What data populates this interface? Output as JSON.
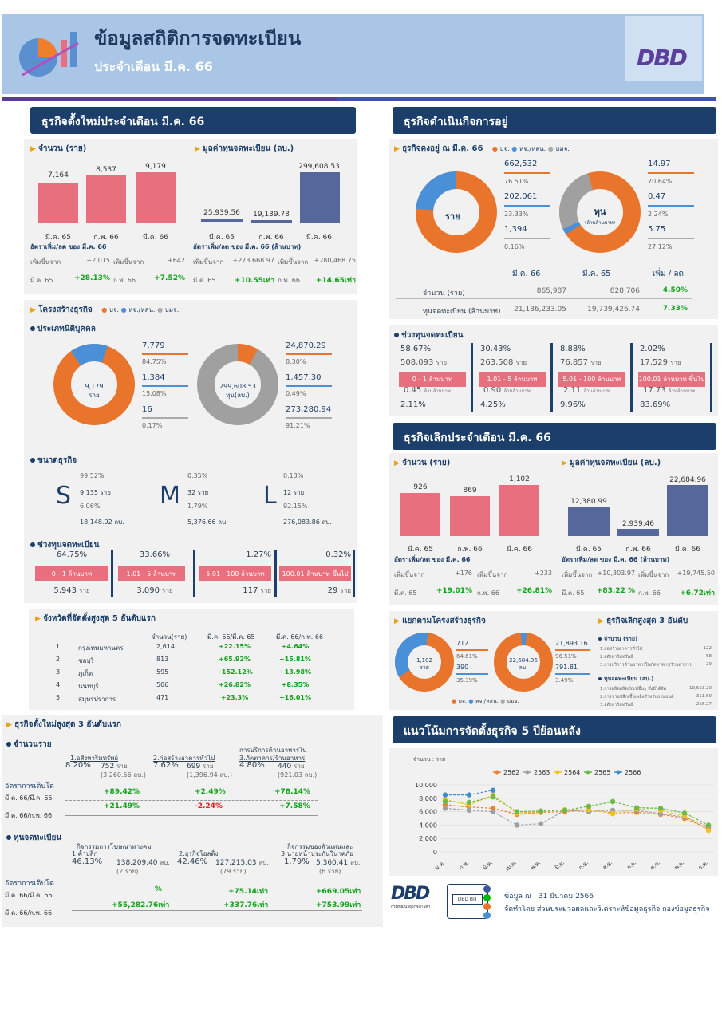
{
  "header": {
    "title": "ข้อมูลสถิติการจดทะเบียน",
    "subtitle": "ประจำเดือน มี.ค. 66",
    "logo": "DBD"
  },
  "new_biz": {
    "title": "ธุรกิจตั้งใหม่ประจำเดือน มี.ค. 66",
    "count_label": "จำนวน (ราย)",
    "capital_label": "มูลค่าทุนจดทะเบียน (ลบ.)",
    "count_cats": [
      "มี.ค. 65",
      "ก.พ. 66",
      "มี.ค. 66"
    ],
    "count_vals": [
      "7,164",
      "8,537",
      "9,179"
    ],
    "cap_cats": [
      "มี.ค. 65",
      "ก.พ. 66",
      "มี.ค. 66"
    ],
    "cap_vals": [
      "25,939.56",
      "19,139.78",
      "299,608.53"
    ],
    "rate_count": "อัตราเพิ่ม/ลด ของ มี.ค. 66",
    "rate_cap": "อัตราเพิ่ม/ลด ของ มี.ค. 66 (ล้านบาท)",
    "inc": "เพิ่มขึ้นจาก",
    "c1_val": "+2,015",
    "c1_per": "มี.ค. 65",
    "c1_pct": "+28.13%",
    "c2_val": "+642",
    "c2_per": "ก.พ. 66",
    "c2_pct": "+7.52%",
    "k1_val": "+273,668.97",
    "k1_per": "มี.ค. 65",
    "k1_pct": "+10.55เท่า",
    "k2_val": "+280,468.75",
    "k2_per": "ก.พ. 66",
    "k2_pct": "+14.65เท่า"
  },
  "structure": {
    "title": "โครงสร้างธุรกิจ",
    "legend": [
      "บจ.",
      "หจ./หสน.",
      "บมจ."
    ],
    "juristic": "ประเภทนิติบุคคล",
    "donut1_center": "9,179",
    "donut1_unit": "ราย",
    "donut2_center": "299,608.53",
    "donut2_unit": "ทุน(ลบ.)",
    "d1": [
      {
        "v": "7,779",
        "p": "84.75%"
      },
      {
        "v": "1,384",
        "p": "15.08%"
      },
      {
        "v": "16",
        "p": "0.17%"
      }
    ],
    "d2": [
      {
        "v": "24,870.29",
        "p": "8.30%"
      },
      {
        "v": "1,457.30",
        "p": "0.49%"
      },
      {
        "v": "273,280.94",
        "p": "91.21%"
      }
    ],
    "size_t": "ขนาดธุรกิจ",
    "S": {
      "letter": "S",
      "p1": "99.52%",
      "n": "9,135 ราย",
      "p2": "6.06%",
      "cap": "18,148.02 ลบ."
    },
    "M": {
      "letter": "M",
      "p1": "0.35%",
      "n": "32 ราย",
      "p2": "1.79%",
      "cap": "5,376.66 ลบ."
    },
    "L": {
      "letter": "L",
      "p1": "0.13%",
      "n": "12 ราย",
      "p2": "92.15%",
      "cap": "276,083.86 ลบ."
    },
    "range_t": "ช่วงทุนจดทะเบียน",
    "ranges": [
      {
        "p": "64.75%",
        "l": "0 - 1 ล้านบาท",
        "n": "5,943",
        "u": "ราย"
      },
      {
        "p": "33.66%",
        "l": "1.01 - 5 ล้านบาท",
        "n": "3,090",
        "u": "ราย"
      },
      {
        "p": "1.27%",
        "l": "5.01 - 100 ล้านบาท",
        "n": "117",
        "u": "ราย"
      },
      {
        "p": "0.32%",
        "l": "100.01 ล้านบาท ขึ้นไป",
        "n": "29",
        "u": "ราย"
      }
    ]
  },
  "top5": {
    "title": "จังหวัดที่จัดตั้งสูงสุด 5 อันดับแรก",
    "h": [
      "จำนวน(ราย)",
      "มี.ค. 66/มี.ค. 65",
      "มี.ค. 66/ก.พ. 66"
    ],
    "rows": [
      [
        "1.",
        "กรุงเทพมหานคร",
        "2,614",
        "+22.15%",
        "+4.64%"
      ],
      [
        "2.",
        "ชลบุรี",
        "813",
        "+65.92%",
        "+15.81%"
      ],
      [
        "3.",
        "ภูเก็ต",
        "595",
        "+152.12%",
        "+13.98%"
      ],
      [
        "4.",
        "นนทบุรี",
        "506",
        "+26.82%",
        "+8.35%"
      ],
      [
        "5.",
        "สมุทรปราการ",
        "471",
        "+23.3%",
        "+16.01%"
      ]
    ]
  },
  "top3new": {
    "title": "ธุรกิจตั้งใหม่สูงสุด 3 อันดับแรก",
    "count": "จำนวนราย",
    "c": [
      {
        "n": "1.อสังหาริมทรัพย์",
        "p": "8.20%",
        "v": "752",
        "u": "ราย",
        "cap": "(3,260.56 ลบ.)"
      },
      {
        "n": "2.ก่อสร้างอาคารทั่วไป",
        "p": "7.62%",
        "v": "699",
        "u": "ราย",
        "cap": "(1,396.94 ลบ.)"
      },
      {
        "n": "3.ภัตตาคาร/ร้านอาหาร",
        "n0": "การบริการด้านอาหารใน",
        "p": "4.80%",
        "v": "440",
        "u": "ราย",
        "cap": "(921.03 ลบ.)"
      }
    ],
    "growth": "อัตราการเติบโต",
    "g1": "มี.ค. 66/มี.ค. 65",
    "g2": "มี.ค. 66/ก.พ. 66",
    "gc": [
      [
        "+89.42%",
        "+21.49%"
      ],
      [
        "+2.49%",
        "-2.24%"
      ],
      [
        "+78.14%",
        "+7.58%"
      ]
    ],
    "cap": "ทุนจดทะเบียน",
    "k": [
      {
        "n0": "กิจกรรมการโฆษณาทางคม",
        "n": "1.ค้าปลีก",
        "p": "46.13%",
        "v": "138,209.40",
        "u": "ลบ.",
        "s": "(2 ราย)"
      },
      {
        "n": "2.ธุรกิจโฮลดิ้ง",
        "p": "42.46%",
        "v": "127,215.03",
        "u": "ลบ.",
        "s": "(79 ราย)"
      },
      {
        "n0": "กิจกรรมของตัวแทนและ",
        "n": "3.นายหน้าประกันวินาศภัย",
        "p": "1.79%",
        "v": "5,360.41",
        "u": "ลบ.",
        "s": "(6 ราย)"
      }
    ],
    "gk": [
      [
        "%",
        "+55,282.76เท่า"
      ],
      [
        "+75.14เท่า",
        "+337.76เท่า"
      ],
      [
        "+669.05เท่า",
        "+753.99เท่า"
      ]
    ]
  },
  "operating": {
    "title": "ธุรกิจดำเนินกิจการอยู่",
    "sub": "ธุรกิจคงอยู่ ณ มี.ค. 66",
    "legend": [
      "บจ.",
      "หจ./หสน.",
      "บมจ."
    ],
    "donut_a": "ราย",
    "donut_b": "ทุน",
    "donut_b2": "(ล้านล้านบาท)",
    "a": [
      {
        "v": "662,532",
        "p": "76.51%"
      },
      {
        "v": "202,061",
        "p": "23.33%"
      },
      {
        "v": "1,394",
        "p": "0.16%"
      }
    ],
    "b": [
      {
        "v": "14.97",
        "p": "70.64%"
      },
      {
        "v": "0.47",
        "p": "2.24%"
      },
      {
        "v": "5.75",
        "p": "27.12%"
      }
    ],
    "cols": [
      "มี.ค. 66",
      "มี.ค. 65",
      "เพิ่ม / ลด"
    ],
    "r1": [
      "จำนวน (ราย)",
      "865,987",
      "828,706",
      "4.50%"
    ],
    "r2": [
      "ทุนจดทะเบียน (ล้านบาท)",
      "21,186,233.05",
      "19,739,426.74",
      "7.33%"
    ],
    "range_t": "ช่วงทุนจดทะเบียน",
    "ranges": [
      {
        "p": "58.67%",
        "n": "508,093",
        "u": "ราย",
        "l": "0 - 1 ล้านบาท",
        "c": "0.45",
        "cu": "ล้านล้านบาท",
        "cp": "2.11%"
      },
      {
        "p": "30.43%",
        "n": "263,508",
        "u": "ราย",
        "l": "1.01 - 5 ล้านบาท",
        "c": "0.90",
        "cu": "ล้านล้านบาท",
        "cp": "4.25%"
      },
      {
        "p": "8.88%",
        "n": "76,857",
        "u": "ราย",
        "l": "5.01 - 100 ล้านบาท",
        "c": "2.11",
        "cu": "ล้านล้านบาท",
        "cp": "9.96%"
      },
      {
        "p": "2.02%",
        "n": "17,529",
        "u": "ราย",
        "l": "100.01 ล้านบาท ขึ้นไป",
        "c": "17.73",
        "cu": "ล้านล้านบาท",
        "cp": "83.69%"
      }
    ]
  },
  "closed": {
    "title": "ธุรกิจเลิกประจำเดือน มี.ค. 66",
    "count_label": "จำนวน (ราย)",
    "capital_label": "มูลค่าทุนจดทะเบียน (ลบ.)",
    "cats": [
      "มี.ค. 65",
      "ก.พ. 66",
      "มี.ค. 66"
    ],
    "count_vals": [
      "926",
      "869",
      "1,102"
    ],
    "cap_vals": [
      "12,380.99",
      "2,939.46",
      "22,684.96"
    ],
    "rate_count": "อัตราเพิ่ม/ลด ของ มี.ค. 66",
    "rate_cap": "อัตราเพิ่ม/ลด ของ มี.ค. 66 (ล้านบาท)",
    "inc": "เพิ่มขึ้นจาก",
    "c1_val": "+176",
    "c1_per": "มี.ค. 65",
    "c1_pct": "+19.01%",
    "c2_val": "+233",
    "c2_per": "ก.พ. 66",
    "c2_pct": "+26.81%",
    "k1_val": "+10,303.97",
    "k1_per": "มี.ค. 65",
    "k1_pct": "+83.22 %",
    "k2_val": "+19,745.50",
    "k2_per": "ก.พ. 66",
    "k2_pct": "+6.72เท่า",
    "struct_t": "แยกตามโครงสร้างธุรกิจ",
    "d1_center": "1,102",
    "d1_unit": "ราย",
    "d2_center": "22,684.96",
    "d2_unit": "ลบ.",
    "d1": [
      {
        "v": "712",
        "p": "64.61%"
      },
      {
        "v": "390",
        "p": "35.39%"
      }
    ],
    "d2": [
      {
        "v": "21,893.16",
        "p": "96.51%"
      },
      {
        "v": "791.81",
        "p": "3.49%"
      }
    ],
    "legend": [
      "บจ.",
      "หจ./หสน.",
      "บมจ."
    ],
    "top3_t": "ธุรกิจเลิกสูงสุด 3 อันดับ",
    "top3_c": "จำนวน (ราย)",
    "top3_k": "ทุนจดทะเบียน (ลบ.)",
    "tc": [
      [
        "1.ก่อสร้างอาคารทั่วไป",
        "122"
      ],
      [
        "2.อสังหาริมทรัพย์",
        "58"
      ],
      [
        "3.การบริการด้านอาหารในภัตตาคาร/ร้านอาหาร",
        "29"
      ]
    ],
    "tk": [
      [
        "1.การผลิตผลิตภัณฑ์อื่นๆ ซึ่งมิได้จัด",
        "19,613.20"
      ],
      [
        "2.การขายปลีกเชื้อเพลิงสำหรับยานยนต์",
        "311.60"
      ],
      [
        "3.อสังหาริมทรัพย์",
        "216.27"
      ]
    ]
  },
  "trend": {
    "title": "แนวโน้มการจัดตั้งธุรกิจ 5 ปีย้อนหลัง",
    "unit": "จำนวน : ราย"
  },
  "chart_data": {
    "type": "line",
    "ylabel": "จำนวน : ราย",
    "ylim": [
      0,
      10000
    ],
    "yticks": [
      "10,000",
      "8,000",
      "6,000",
      "4,000",
      "2,000",
      "0"
    ],
    "categories": [
      "ม.ค.",
      "ก.พ.",
      "มี.ค.",
      "เม.ย.",
      "พ.ค.",
      "มิ.ย.",
      "ก.ค.",
      "ส.ค.",
      "ก.ย.",
      "ต.ค.",
      "พ.ย.",
      "ธ.ค."
    ],
    "series": [
      {
        "name": "2562",
        "color": "#f07f2c",
        "values": [
          7000,
          6700,
          6500,
          5600,
          5900,
          6000,
          6300,
          5800,
          5900,
          5600,
          5000,
          3500
        ]
      },
      {
        "name": "2563",
        "color": "#a0a0a0",
        "values": [
          6500,
          6200,
          6000,
          4000,
          4200,
          6200,
          6000,
          6200,
          6200,
          5700,
          5200,
          3800
        ]
      },
      {
        "name": "2564",
        "color": "#f2c21a",
        "values": [
          7800,
          7000,
          8500,
          5800,
          6000,
          6300,
          6300,
          5700,
          6400,
          6200,
          5400,
          3200
        ]
      },
      {
        "name": "2565",
        "color": "#6aba45",
        "values": [
          7500,
          7400,
          8200,
          6000,
          6100,
          6200,
          6800,
          7500,
          6600,
          6500,
          5800,
          4000
        ]
      },
      {
        "name": "2566",
        "color": "#3c8dcf",
        "values": [
          8500,
          8500,
          9200,
          null,
          null,
          null,
          null,
          null,
          null,
          null,
          null,
          null
        ]
      }
    ]
  },
  "footer": {
    "date_label": "ข้อมูล ณ",
    "date": "31 มีนาคม 2566",
    "by": "จัดทำโดย ส่วนประมวลผลและวิเคราะห์ข้อมูลธุรกิจ กองข้อมูลธุรกิจ",
    "org": "กรมพัฒนาธุรกิจการค้า",
    "bit": "DBD BIT",
    "colors": {
      "orange": "#e9742c",
      "blue": "#4a90d9",
      "gray": "#a0a0a0",
      "navy": "#1b3f6a",
      "pink": "#e8707e",
      "bar_blue": "#55679b"
    }
  }
}
